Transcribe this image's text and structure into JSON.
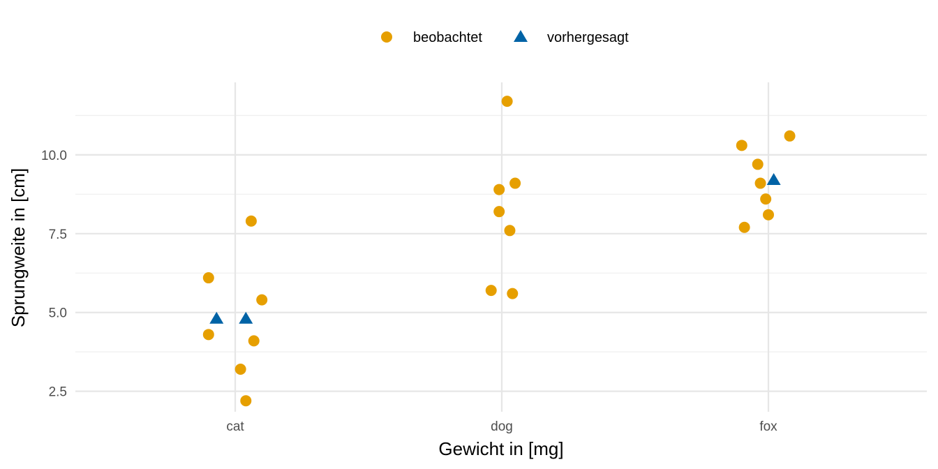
{
  "chart_data": {
    "type": "scatter",
    "title": "",
    "xlabel": "Gewicht in [mg]",
    "ylabel": "Sprungweite in [cm]",
    "categories": [
      "cat",
      "dog",
      "fox"
    ],
    "y_ticks": [
      2.5,
      5.0,
      7.5,
      10.0
    ],
    "y_tick_labels": [
      "2.5",
      "5.0",
      "7.5",
      "10.0"
    ],
    "ylim": [
      1.85,
      12.3
    ],
    "grid": true,
    "legend_position": "top-center",
    "series": [
      {
        "name": "beobachtet",
        "marker": "circle",
        "color": "#E69F00",
        "points": [
          {
            "x": "cat",
            "jitter": -0.1,
            "y": 6.1
          },
          {
            "x": "cat",
            "jitter": -0.1,
            "y": 4.3
          },
          {
            "x": "cat",
            "jitter": 0.1,
            "y": 5.4
          },
          {
            "x": "cat",
            "jitter": 0.06,
            "y": 7.9
          },
          {
            "x": "cat",
            "jitter": 0.07,
            "y": 4.1
          },
          {
            "x": "cat",
            "jitter": 0.02,
            "y": 3.2
          },
          {
            "x": "cat",
            "jitter": 0.04,
            "y": 2.2
          },
          {
            "x": "dog",
            "jitter": 0.02,
            "y": 11.7
          },
          {
            "x": "dog",
            "jitter": 0.05,
            "y": 9.1
          },
          {
            "x": "dog",
            "jitter": -0.01,
            "y": 8.9
          },
          {
            "x": "dog",
            "jitter": -0.01,
            "y": 8.2
          },
          {
            "x": "dog",
            "jitter": 0.03,
            "y": 7.6
          },
          {
            "x": "dog",
            "jitter": -0.04,
            "y": 5.7
          },
          {
            "x": "dog",
            "jitter": 0.04,
            "y": 5.6
          },
          {
            "x": "fox",
            "jitter": 0.08,
            "y": 10.6
          },
          {
            "x": "fox",
            "jitter": -0.1,
            "y": 10.3
          },
          {
            "x": "fox",
            "jitter": -0.04,
            "y": 9.7
          },
          {
            "x": "fox",
            "jitter": -0.03,
            "y": 9.1
          },
          {
            "x": "fox",
            "jitter": -0.01,
            "y": 8.6
          },
          {
            "x": "fox",
            "jitter": 0.0,
            "y": 8.1
          },
          {
            "x": "fox",
            "jitter": -0.09,
            "y": 7.7
          }
        ]
      },
      {
        "name": "vorhergesagt",
        "marker": "triangle",
        "color": "#0063A6",
        "points": [
          {
            "x": "cat",
            "jitter": -0.07,
            "y": 4.8
          },
          {
            "x": "cat",
            "jitter": 0.04,
            "y": 4.8
          },
          {
            "x": "fox",
            "jitter": 0.02,
            "y": 9.2
          }
        ]
      }
    ]
  }
}
